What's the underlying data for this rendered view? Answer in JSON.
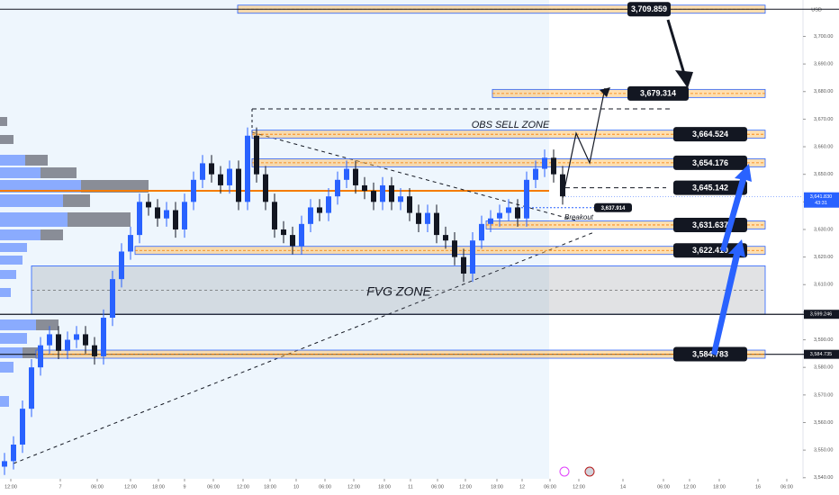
{
  "chart_data": {
    "type": "candlestick",
    "currency": "USD",
    "x": [
      0.5,
      1.5,
      2.5,
      3.5,
      4.5,
      5.5,
      6.5,
      7.5,
      8.5,
      9.5,
      10.5,
      11.5,
      12.5,
      13.5,
      14.5,
      15.5,
      16.5,
      17.5,
      18.5,
      19.5,
      20.5,
      21.5,
      22.5,
      23.5,
      24.5,
      25.5,
      26.5,
      27.5,
      28.5,
      29.5,
      30.5,
      31.5,
      32.5,
      33.5,
      34.5,
      35.5,
      36.5,
      37.5,
      38.5,
      39.5,
      40.5,
      41.5,
      42.5,
      43.5,
      44.5,
      45.5,
      46.5,
      47.5,
      48.5,
      49.5,
      50.5,
      51.5,
      52.5,
      53.5,
      54.5,
      55.5,
      56.5,
      57.5,
      58.5,
      59.5,
      60.5,
      61.5,
      62.5
    ],
    "open": [
      3544,
      3546,
      3552,
      3565,
      3580,
      3588,
      3592,
      3586,
      3590,
      3592,
      3588,
      3584,
      3598,
      3612,
      3622,
      3628,
      3640,
      3638,
      3634,
      3637,
      3630,
      3640,
      3648,
      3654,
      3650,
      3646,
      3652,
      3640,
      3664,
      3650,
      3640,
      3630,
      3628,
      3624,
      3632,
      3638,
      3636,
      3642,
      3648,
      3652,
      3646,
      3644,
      3640,
      3646,
      3640,
      3642,
      3636,
      3632,
      3636,
      3628,
      3626,
      3620,
      3614,
      3626,
      3632,
      3634,
      3636,
      3638,
      3634,
      3648,
      3652,
      3656,
      3650
    ],
    "high": [
      3549,
      3555,
      3568,
      3583,
      3591,
      3595,
      3595,
      3593,
      3595,
      3595,
      3591,
      3601,
      3615,
      3625,
      3631,
      3643,
      3643,
      3641,
      3640,
      3640,
      3643,
      3651,
      3657,
      3657,
      3653,
      3655,
      3655,
      3667,
      3667,
      3653,
      3643,
      3633,
      3631,
      3635,
      3641,
      3641,
      3645,
      3651,
      3655,
      3655,
      3649,
      3647,
      3649,
      3649,
      3645,
      3645,
      3639,
      3639,
      3639,
      3631,
      3629,
      3623,
      3629,
      3635,
      3637,
      3639,
      3641,
      3641,
      3651,
      3655,
      3659,
      3659,
      3653
    ],
    "low": [
      3541,
      3543,
      3549,
      3562,
      3577,
      3585,
      3583,
      3583,
      3587,
      3585,
      3581,
      3581,
      3595,
      3609,
      3619,
      3625,
      3635,
      3631,
      3631,
      3627,
      3627,
      3637,
      3645,
      3647,
      3643,
      3643,
      3637,
      3637,
      3647,
      3637,
      3627,
      3625,
      3621,
      3621,
      3629,
      3633,
      3633,
      3639,
      3645,
      3643,
      3641,
      3637,
      3637,
      3637,
      3637,
      3633,
      3629,
      3629,
      3625,
      3623,
      3617,
      3611,
      3611,
      3623,
      3629,
      3631,
      3633,
      3631,
      3631,
      3645,
      3649,
      3647,
      3639
    ],
    "close": [
      3546,
      3552,
      3565,
      3580,
      3588,
      3592,
      3586,
      3590,
      3592,
      3588,
      3584,
      3598,
      3612,
      3622,
      3628,
      3640,
      3638,
      3634,
      3637,
      3630,
      3640,
      3648,
      3654,
      3650,
      3646,
      3652,
      3640,
      3664,
      3650,
      3640,
      3630,
      3628,
      3624,
      3632,
      3638,
      3636,
      3642,
      3648,
      3652,
      3646,
      3644,
      3640,
      3646,
      3640,
      3642,
      3636,
      3632,
      3636,
      3628,
      3626,
      3620,
      3614,
      3626,
      3632,
      3634,
      3636,
      3638,
      3634,
      3648,
      3652,
      3656,
      3650,
      3642
    ],
    "colors": {
      "up": "#2962ff",
      "down": "#131722"
    },
    "xlim": [
      0,
      89
    ],
    "xticks": [
      {
        "value": 1.2,
        "label": "12:00"
      },
      {
        "value": 6.7,
        "label": "7"
      },
      {
        "value": 10.8,
        "label": "06:00"
      },
      {
        "value": 14.5,
        "label": "12:00"
      },
      {
        "value": 17.6,
        "label": "18:00"
      },
      {
        "value": 20.5,
        "label": "9"
      },
      {
        "value": 23.7,
        "label": "06:00"
      },
      {
        "value": 27,
        "label": "12:00"
      },
      {
        "value": 30,
        "label": "18:00"
      },
      {
        "value": 32.9,
        "label": "10"
      },
      {
        "value": 36.1,
        "label": "06:00"
      },
      {
        "value": 39.3,
        "label": "12:00"
      },
      {
        "value": 42.7,
        "label": "18:00"
      },
      {
        "value": 45.6,
        "label": "11"
      },
      {
        "value": 48.6,
        "label": "06:00"
      },
      {
        "value": 51.7,
        "label": "12:00"
      },
      {
        "value": 55.2,
        "label": "18:00"
      },
      {
        "value": 58,
        "label": "12"
      },
      {
        "value": 61.1,
        "label": "06:00"
      },
      {
        "value": 64.3,
        "label": "12:00"
      },
      {
        "value": 69.2,
        "label": "14"
      },
      {
        "value": 73.7,
        "label": "06:00"
      },
      {
        "value": 76.6,
        "label": "12:00"
      },
      {
        "value": 79.9,
        "label": "18:00"
      },
      {
        "value": 84.2,
        "label": "16"
      },
      {
        "value": 87.4,
        "label": "06:00"
      }
    ],
    "ylim": [
      3539.6,
      3713.2
    ],
    "yticks": [
      {
        "value": 3540,
        "label": "3,540.00"
      },
      {
        "value": 3550,
        "label": "3,550.00"
      },
      {
        "value": 3560,
        "label": "3,560.00"
      },
      {
        "value": 3570,
        "label": "3,570.00"
      },
      {
        "value": 3580,
        "label": "3,580.00"
      },
      {
        "value": 3590,
        "label": "3,590.00"
      },
      {
        "value": 3600,
        "label": "3,600.00"
      },
      {
        "value": 3610,
        "label": "3,610.00"
      },
      {
        "value": 3620,
        "label": "3,620.00"
      },
      {
        "value": 3630,
        "label": "3,630.00"
      },
      {
        "value": 3640,
        "label": "3,640.00"
      },
      {
        "value": 3650,
        "label": "3,650.00"
      },
      {
        "value": 3660,
        "label": "3,660.00"
      },
      {
        "value": 3670,
        "label": "3,670.00"
      },
      {
        "value": 3680,
        "label": "3,680.00"
      },
      {
        "value": 3690,
        "label": "3,690.00"
      },
      {
        "value": 3700,
        "label": "3,700.00"
      }
    ],
    "grid": false,
    "levels": [
      {
        "value": 3709.859,
        "label": "3,709.859"
      },
      {
        "value": 3679.314,
        "label": "3,679.314"
      },
      {
        "value": 3664.524,
        "label": "3,664.524"
      },
      {
        "value": 3654.176,
        "label": "3,654.176"
      },
      {
        "value": 3645.142,
        "label": "3,645.142"
      },
      {
        "value": 3637.914,
        "label": "3,637.914"
      },
      {
        "value": 3631.637,
        "label": "3,631.637"
      },
      {
        "value": 3622.41,
        "label": "3,622.410"
      },
      {
        "value": 3584.783,
        "label": "3,584.783"
      }
    ],
    "fvg_zone": {
      "label": "FVG ZONE",
      "low": 3599.246,
      "high": 3616.8
    },
    "obs_label": "OBS SELL ZONE",
    "breakout_label": "Breakout",
    "axis_markers": [
      {
        "value": 3641.83,
        "label": "3,641.830",
        "color": "#2962ff"
      },
      {
        "value": 3599.246,
        "label": "3,599.246",
        "color": "#131722"
      },
      {
        "value": 3584.735,
        "label": "3,584.735",
        "color": "#131722"
      }
    ],
    "countdown": "43:31"
  }
}
